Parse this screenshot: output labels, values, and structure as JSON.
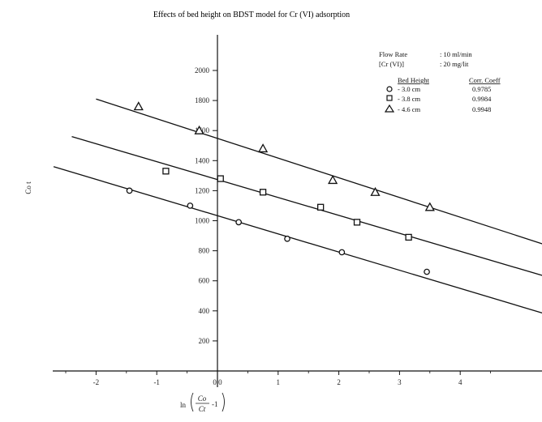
{
  "chart_data": {
    "type": "scatter",
    "title": "Effects of bed height on BDST model for Cr (VI) adsorption",
    "ylabel": "Co t",
    "xlabel_ln": "ln",
    "xlabel_num": "Co",
    "xlabel_den": "Ct",
    "xlabel_tail": "-1",
    "xlim": [
      -2.7,
      5.4
    ],
    "ylim": [
      0,
      2250
    ],
    "x_ticks": [
      -2,
      -1,
      0,
      1,
      2,
      3,
      4
    ],
    "x_tick_labels": [
      "-2",
      "-1",
      "0.0",
      "1",
      "2",
      "3",
      "4"
    ],
    "y_ticks": [
      200,
      400,
      600,
      800,
      1000,
      1200,
      1400,
      1600,
      1800,
      2000
    ],
    "y_tick_labels": [
      "200",
      "400",
      "600",
      "800",
      "1000",
      "1200",
      "1400",
      "1600",
      "1800",
      "2000"
    ],
    "grid": false,
    "legend_position": "top-right",
    "legend": {
      "flow_rate_label": "Flow Rate",
      "flow_rate_value": ": 10 ml/min",
      "conc_label": "[Cr (VI)]",
      "conc_value": ": 20 mg/lit",
      "bed_height_header": "Bed Height",
      "corr_header": "Corr. Coeff"
    },
    "series": [
      {
        "name": "- 3.0 cm",
        "marker": "circle",
        "corr": "0.9785",
        "points": [
          [
            -1.45,
            1200
          ],
          [
            -0.45,
            1100
          ],
          [
            0.35,
            990
          ],
          [
            1.15,
            880
          ],
          [
            2.05,
            790
          ],
          [
            3.45,
            660
          ]
        ],
        "fit": [
          [
            -2.7,
            1360
          ],
          [
            5.4,
            380
          ]
        ]
      },
      {
        "name": "- 3.8 cm",
        "marker": "square",
        "corr": "0.9984",
        "points": [
          [
            -0.85,
            1330
          ],
          [
            0.05,
            1280
          ],
          [
            0.75,
            1190
          ],
          [
            1.7,
            1090
          ],
          [
            2.3,
            990
          ],
          [
            3.15,
            890
          ]
        ],
        "fit": [
          [
            -2.4,
            1560
          ],
          [
            5.4,
            630
          ]
        ]
      },
      {
        "name": "- 4.6 cm",
        "marker": "triangle",
        "corr": "0.9948",
        "points": [
          [
            -1.3,
            1760
          ],
          [
            -0.3,
            1600
          ],
          [
            0.75,
            1480
          ],
          [
            1.9,
            1270
          ],
          [
            2.6,
            1190
          ],
          [
            3.5,
            1090
          ]
        ],
        "fit": [
          [
            -2.0,
            1810
          ],
          [
            5.4,
            840
          ]
        ]
      }
    ]
  }
}
